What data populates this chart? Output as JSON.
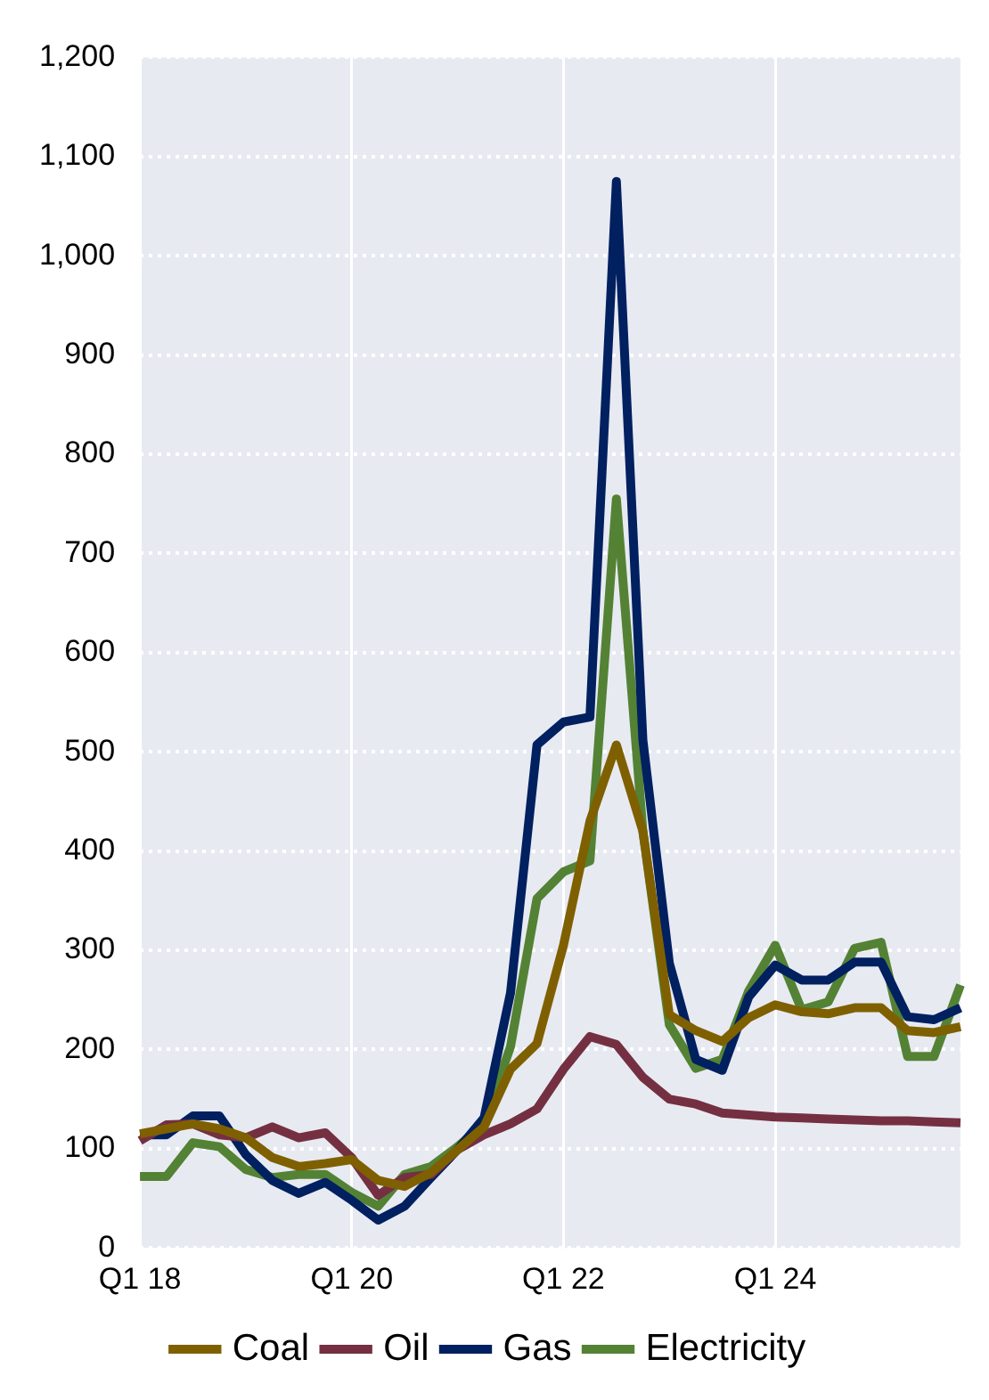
{
  "chart_data": {
    "type": "line",
    "categories": [
      "Q1 18",
      null,
      null,
      null,
      null,
      null,
      null,
      null,
      "Q1 20",
      null,
      null,
      null,
      null,
      null,
      null,
      null,
      "Q1 22",
      null,
      null,
      null,
      null,
      null,
      null,
      null,
      "Q1 24",
      null,
      null,
      null,
      null,
      null,
      null,
      null
    ],
    "series": [
      {
        "name": "Coal",
        "color": "#7f6000",
        "values": [
          115,
          120,
          125,
          120,
          111,
          91,
          82,
          85,
          89,
          68,
          62,
          76,
          99,
          122,
          180,
          206,
          305,
          430,
          507,
          420,
          235,
          219,
          208,
          232,
          245,
          238,
          236,
          242,
          242,
          219,
          217,
          223
        ]
      },
      {
        "name": "Oil",
        "color": "#743041",
        "values": [
          108,
          124,
          125,
          114,
          111,
          122,
          111,
          116,
          91,
          53,
          71,
          74,
          99,
          114,
          125,
          140,
          180,
          213,
          205,
          172,
          150,
          145,
          136,
          134,
          132,
          131,
          130,
          129,
          128,
          128,
          127,
          126
        ]
      },
      {
        "name": "Gas",
        "color": "#002060",
        "values": [
          114,
          114,
          133,
          133,
          94,
          68,
          55,
          66,
          48,
          28,
          42,
          71,
          99,
          131,
          257,
          507,
          530,
          535,
          1075,
          512,
          287,
          190,
          179,
          253,
          285,
          270,
          270,
          288,
          288,
          233,
          230,
          242
        ]
      },
      {
        "name": "Electricity",
        "color": "#548235",
        "values": [
          72,
          72,
          106,
          102,
          79,
          71,
          74,
          74,
          56,
          42,
          74,
          82,
          102,
          125,
          203,
          352,
          379,
          390,
          755,
          420,
          225,
          181,
          190,
          259,
          305,
          240,
          248,
          302,
          308,
          193,
          193,
          265
        ]
      }
    ],
    "ylim": [
      0,
      1200
    ],
    "yticks": [
      0,
      100,
      200,
      300,
      400,
      500,
      600,
      700,
      800,
      900,
      {
        "value": 1000,
        "label": "1,000"
      },
      {
        "value": 1100,
        "label": "1,100"
      },
      {
        "value": 1200,
        "label": "1,200"
      }
    ],
    "grid": true,
    "legend": "bottom",
    "marker": "none",
    "line_style": "solid"
  }
}
